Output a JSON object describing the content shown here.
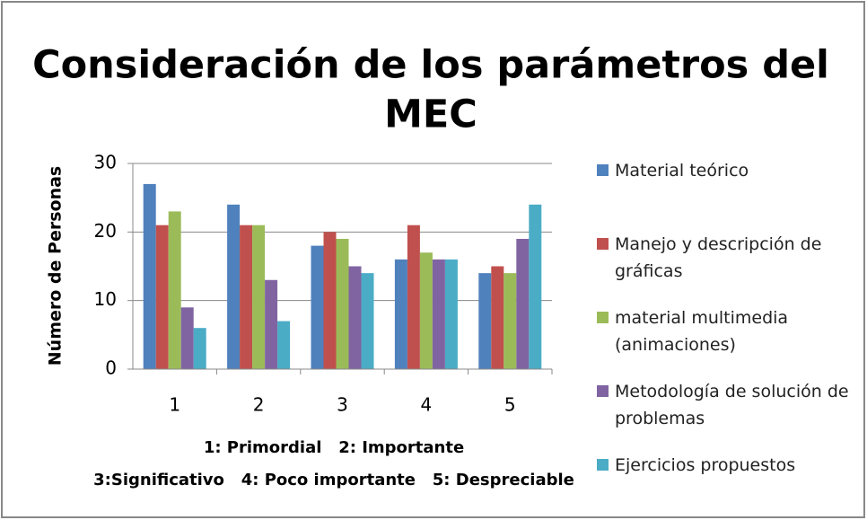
{
  "chart_data": {
    "type": "bar",
    "title": [
      "Consideración de los parámetros del",
      "MEC"
    ],
    "ylabel": "Número de Personas",
    "xlabel": [
      "1: Primordial   2: Importante",
      "3:Significativo   4: Poco importante   5: Despreciable"
    ],
    "categories": [
      "1",
      "2",
      "3",
      "4",
      "5"
    ],
    "series": [
      {
        "name": "Material teórico",
        "color": "#4F81BD",
        "values": [
          27,
          24,
          18,
          16,
          14
        ]
      },
      {
        "name": "Manejo y descripción de gráficas",
        "color": "#C0504D",
        "values": [
          21,
          21,
          20,
          21,
          15
        ]
      },
      {
        "name": "material multimedia (animaciones)",
        "color": "#9BBB59",
        "values": [
          23,
          21,
          19,
          17,
          14
        ]
      },
      {
        "name": "Metodología de solución de problemas",
        "color": "#8064A2",
        "values": [
          9,
          13,
          15,
          16,
          19
        ]
      },
      {
        "name": "Ejercicios propuestos",
        "color": "#4BACC6",
        "values": [
          6,
          7,
          14,
          16,
          24
        ]
      }
    ],
    "ylim": [
      0,
      30
    ],
    "yticks": [
      0,
      10,
      20,
      30
    ],
    "grid": true,
    "legend": "right"
  }
}
